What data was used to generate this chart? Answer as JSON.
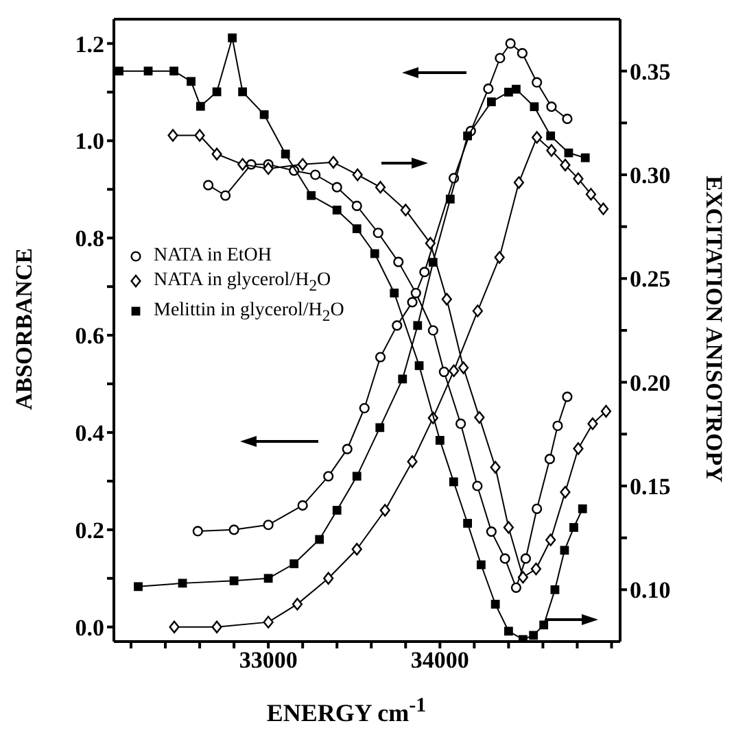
{
  "chart_data": {
    "type": "line",
    "xlabel": "ENERGY cm$^{-1}$",
    "ylabel": "ABSORBANCE",
    "y2label": "EXCITATION ANISOTROPY",
    "xlim": [
      32100,
      35050
    ],
    "xticks": [
      {
        "value": 32200,
        "label": null
      },
      {
        "value": 32400,
        "label": null
      },
      {
        "value": 32600,
        "label": null
      },
      {
        "value": 32800,
        "label": null
      },
      33000,
      {
        "value": 33200,
        "label": null
      },
      {
        "value": 33400,
        "label": null
      },
      {
        "value": 33600,
        "label": null
      },
      {
        "value": 33800,
        "label": null
      },
      34000,
      {
        "value": 34200,
        "label": null
      },
      {
        "value": 34400,
        "label": null
      },
      {
        "value": 34600,
        "label": null
      },
      {
        "value": 34800,
        "label": null
      },
      {
        "value": 35000,
        "label": null
      }
    ],
    "ylim": [
      -0.03,
      1.25
    ],
    "yticks": [
      {
        "value": 0,
        "label": "0.0"
      },
      {
        "value": 0.1,
        "label": null
      },
      {
        "value": 0.2,
        "label": "0.2"
      },
      {
        "value": 0.3,
        "label": null
      },
      {
        "value": 0.4,
        "label": "0.4"
      },
      {
        "value": 0.5,
        "label": null
      },
      {
        "value": 0.6,
        "label": "0.6"
      },
      {
        "value": 0.7,
        "label": null
      },
      {
        "value": 0.8,
        "label": "0.8"
      },
      {
        "value": 0.9,
        "label": null
      },
      {
        "value": 1,
        "label": "1.0"
      },
      {
        "value": 1.1,
        "label": null
      },
      {
        "value": 1.2,
        "label": "1.2"
      }
    ],
    "y2lim": [
      0.075,
      0.375
    ],
    "y2ticks": [
      {
        "value": 0.1,
        "label": "0.10"
      },
      {
        "value": 0.125,
        "label": null
      },
      {
        "value": 0.15,
        "label": "0.15"
      },
      {
        "value": 0.175,
        "label": null
      },
      {
        "value": 0.2,
        "label": "0.20"
      },
      {
        "value": 0.225,
        "label": null
      },
      {
        "value": 0.25,
        "label": "0.25"
      },
      {
        "value": 0.275,
        "label": null
      },
      {
        "value": 0.3,
        "label": "0.30"
      },
      {
        "value": 0.325,
        "label": null
      },
      {
        "value": 0.35,
        "label": "0.35"
      }
    ],
    "legend": "left",
    "series": [
      {
        "name": "NATA in EtOH",
        "color": "#000000",
        "marker": "circle",
        "x": [
          32589,
          32800,
          33000,
          33200,
          33350,
          33460,
          33560,
          33653,
          33750,
          33839,
          33910,
          34081,
          34180,
          34282,
          34350,
          34411,
          34480,
          34565,
          34650,
          34742
        ],
        "values": [
          0.197,
          0.2,
          0.21,
          0.25,
          0.31,
          0.366,
          0.45,
          0.555,
          0.62,
          0.668,
          0.73,
          0.923,
          1.02,
          1.107,
          1.17,
          1.2,
          1.18,
          1.12,
          1.07,
          1.045
        ]
      },
      {
        "name": "NATA in glycerol/H$_{2}$O",
        "color": "#000000",
        "marker": "diamond",
        "x": [
          32452,
          32700,
          33000,
          33169,
          33350,
          33516,
          33680,
          33839,
          33960,
          34081,
          34220,
          34347,
          34460,
          34565,
          34650,
          34730,
          34806,
          34880,
          34952
        ],
        "values": [
          0.0,
          0.0,
          0.01,
          0.047,
          0.1,
          0.16,
          0.24,
          0.34,
          0.43,
          0.527,
          0.65,
          0.76,
          0.914,
          1.007,
          0.98,
          0.95,
          0.922,
          0.89,
          0.86
        ]
      },
      {
        "name": "Melittin in glycerol/H$_{2}$O",
        "color": "#000000",
        "marker": "square",
        "x": [
          32242,
          32500,
          32800,
          33000,
          33150,
          33298,
          33400,
          33516,
          33650,
          33782,
          33870,
          33960,
          34060,
          34161,
          34300,
          34400,
          34444,
          34550,
          34645,
          34750,
          34847
        ],
        "values": [
          0.083,
          0.09,
          0.095,
          0.1,
          0.13,
          0.18,
          0.24,
          0.31,
          0.41,
          0.51,
          0.62,
          0.75,
          0.88,
          1.01,
          1.08,
          1.1,
          1.106,
          1.07,
          1.01,
          0.975,
          0.965
        ]
      },
      {
        "color": "#000000",
        "marker": "circle",
        "axis": "y2",
        "x": [
          32650,
          32750,
          32900,
          33000,
          33150,
          33274,
          33400,
          33516,
          33640,
          33758,
          33860,
          33960,
          34024,
          34121,
          34218,
          34300,
          34379,
          34444,
          34500,
          34565,
          34640,
          34686,
          34742
        ],
        "values": [
          0.295,
          0.29,
          0.305,
          0.305,
          0.302,
          0.3,
          0.294,
          0.285,
          0.272,
          0.258,
          0.243,
          0.225,
          0.205,
          0.18,
          0.15,
          0.128,
          0.115,
          0.101,
          0.115,
          0.139,
          0.163,
          0.179,
          0.193
        ]
      },
      {
        "color": "#000000",
        "marker": "diamond",
        "axis": "y2",
        "x": [
          32444,
          32600,
          32700,
          32850,
          33000,
          33200,
          33379,
          33520,
          33653,
          33800,
          33944,
          34040,
          34137,
          34230,
          34323,
          34400,
          34484,
          34560,
          34645,
          34730,
          34806,
          34890,
          34968
        ],
        "values": [
          0.319,
          0.319,
          0.31,
          0.305,
          0.303,
          0.305,
          0.306,
          0.3,
          0.294,
          0.283,
          0.267,
          0.24,
          0.207,
          0.183,
          0.159,
          0.13,
          0.106,
          0.11,
          0.124,
          0.147,
          0.168,
          0.18,
          0.186
        ]
      },
      {
        "color": "#000000",
        "marker": "square",
        "axis": "y2",
        "x": [
          32130,
          32300,
          32450,
          32550,
          32605,
          32700,
          32790,
          32850,
          32976,
          33100,
          33250,
          33400,
          33516,
          33620,
          33734,
          33879,
          34000,
          34080,
          34161,
          34240,
          34323,
          34400,
          34484,
          34545,
          34605,
          34670,
          34726,
          34780,
          34831
        ],
        "values": [
          0.35,
          0.35,
          0.35,
          0.345,
          0.333,
          0.34,
          0.366,
          0.34,
          0.329,
          0.31,
          0.29,
          0.283,
          0.274,
          0.262,
          0.243,
          0.208,
          0.172,
          0.152,
          0.132,
          0.112,
          0.093,
          0.08,
          0.076,
          0.078,
          0.083,
          0.1,
          0.119,
          0.13,
          0.139
        ]
      }
    ]
  }
}
